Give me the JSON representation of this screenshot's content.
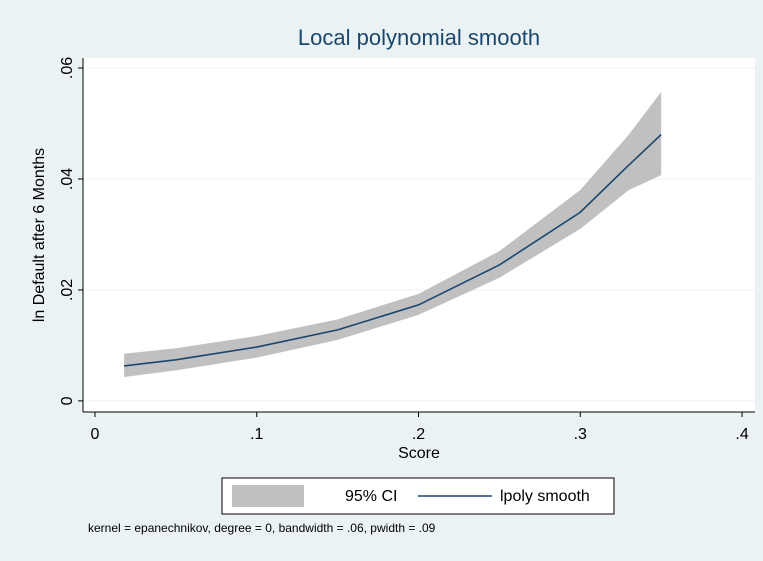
{
  "chart_data": {
    "type": "line",
    "title": "Local polynomial smooth",
    "xlabel": "Score",
    "ylabel": "ln Default after 6 Months",
    "note": "kernel = epanechnikov, degree = 0, bandwidth = .06, pwidth = .09",
    "x": [
      0.018,
      0.05,
      0.1,
      0.15,
      0.2,
      0.25,
      0.3,
      0.33,
      0.35
    ],
    "series": [
      {
        "name": "lpoly smooth",
        "color": "#1a476f",
        "values": [
          0.0063,
          0.0074,
          0.0097,
          0.0128,
          0.0173,
          0.0245,
          0.034,
          0.0425,
          0.048
        ]
      }
    ],
    "ci": {
      "name": "95% CI",
      "color": "#c0c0c0",
      "lower": [
        0.0043,
        0.0055,
        0.0078,
        0.011,
        0.0155,
        0.0222,
        0.031,
        0.038,
        0.0407
      ],
      "upper": [
        0.0085,
        0.0095,
        0.0117,
        0.0147,
        0.0193,
        0.027,
        0.038,
        0.048,
        0.0557
      ]
    },
    "xlim": [
      -0.0074,
      0.408
    ],
    "ylim": [
      -0.002,
      0.0618
    ],
    "xticks": [
      0,
      {
        "value": 0.1,
        "label": ".1"
      },
      {
        "value": 0.2,
        "label": ".2"
      },
      {
        "value": 0.3,
        "label": ".3"
      },
      {
        "value": 0.4,
        "label": ".4"
      }
    ],
    "yticks": [
      0,
      {
        "value": 0.02,
        "label": ".02"
      },
      {
        "value": 0.04,
        "label": ".04"
      },
      {
        "value": 0.06,
        "label": ".06"
      }
    ],
    "grid": true
  }
}
